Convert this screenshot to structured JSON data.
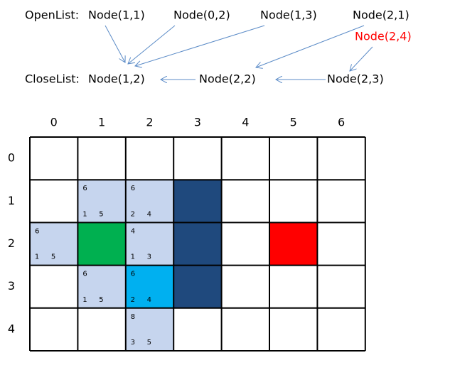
{
  "open_list": {
    "label": "OpenList:",
    "nodes": [
      "Node(1,1)",
      "Node(0,2)",
      "Node(1,3)",
      "Node(2,1)"
    ],
    "added_node": {
      "text": "Node(2,4)",
      "color": "#ff0000"
    }
  },
  "close_list": {
    "label": "CloseList:",
    "nodes": [
      "Node(1,2)",
      "Node(2,2)",
      "Node(2,3)"
    ]
  },
  "grid": {
    "column_labels": [
      "0",
      "1",
      "2",
      "3",
      "4",
      "5",
      "6"
    ],
    "row_labels": [
      "0",
      "1",
      "2",
      "3",
      "4"
    ],
    "rows": [
      [
        null,
        null,
        null,
        null,
        null,
        null,
        null
      ],
      [
        null,
        {
          "color": "#c6d5ee",
          "f": 6,
          "g": 1,
          "h": 5
        },
        {
          "color": "#c6d5ee",
          "f": 6,
          "g": 2,
          "h": 4
        },
        {
          "color": "#1f497d"
        },
        null,
        null,
        null
      ],
      [
        {
          "color": "#c6d5ee",
          "f": 6,
          "g": 1,
          "h": 5
        },
        {
          "color": "#00b050"
        },
        {
          "color": "#c6d5ee",
          "f": 4,
          "g": 1,
          "h": 3
        },
        {
          "color": "#1f497d"
        },
        null,
        {
          "color": "#ff0000"
        },
        null
      ],
      [
        null,
        {
          "color": "#c6d5ee",
          "f": 6,
          "g": 1,
          "h": 5
        },
        {
          "color": "#00b0f0",
          "f": 6,
          "g": 2,
          "h": 4
        },
        {
          "color": "#1f497d"
        },
        null,
        null,
        null
      ],
      [
        null,
        null,
        {
          "color": "#c6d5ee",
          "f": 8,
          "g": 3,
          "h": 5
        },
        null,
        null,
        null,
        null
      ]
    ]
  }
}
